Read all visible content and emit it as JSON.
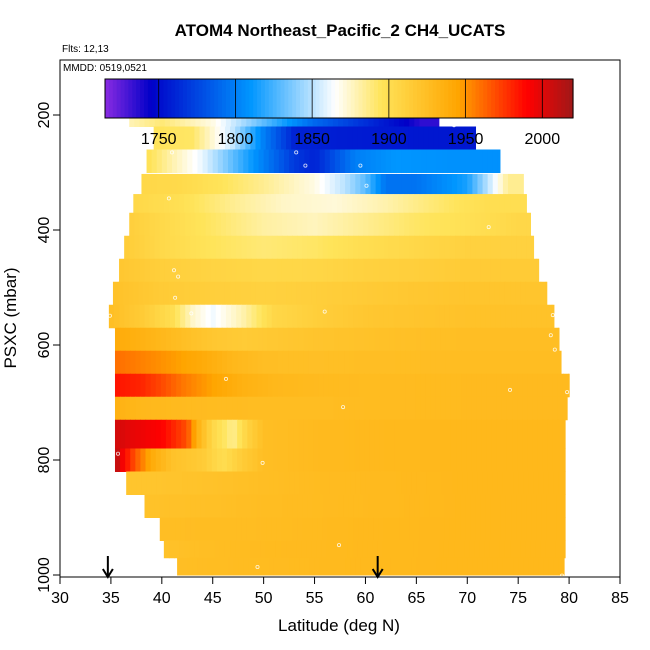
{
  "chart_data": {
    "type": "heatmap",
    "title": "ATOM4 Northeast_Pacific_2 CH4_UCATS",
    "flights_note": "Flts: 12,13",
    "dates_note": "MMDD: 0519,0521",
    "xlabel": "Latitude (deg N)",
    "ylabel": "PSXC (mbar)",
    "xlim": [
      30,
      85
    ],
    "ylim": [
      1000,
      0
    ],
    "x_ticks": [
      30,
      35,
      40,
      45,
      50,
      55,
      60,
      65,
      70,
      75,
      80,
      85
    ],
    "y_ticks": [
      200,
      400,
      600,
      800,
      1000
    ],
    "colorbar": {
      "min": 1715,
      "max": 2020,
      "ticks": [
        1750,
        1800,
        1850,
        1900,
        1950,
        2000
      ],
      "colors": [
        "#8a2be2",
        "#0000c8",
        "#0096ff",
        "#ffffff",
        "#ffe45a",
        "#ffa500",
        "#ff0000",
        "#a01818"
      ],
      "color_stops": [
        1715,
        1745,
        1810,
        1865,
        1895,
        1945,
        1990,
        2020
      ]
    },
    "arrows_lat": [
      34.7,
      61.2
    ],
    "rows": [
      {
        "p": 200,
        "dp": 40,
        "lat0": 36.8,
        "lat1": 67.2,
        "segs": [
          [
            36.8,
            1878
          ],
          [
            40,
            1890
          ],
          [
            45,
            1870
          ],
          [
            50,
            1830
          ],
          [
            55,
            1790
          ],
          [
            60,
            1765
          ],
          [
            64,
            1745
          ],
          [
            65.5,
            1735
          ]
        ]
      },
      {
        "p": 240,
        "dp": 40,
        "lat0": 39.2,
        "lat1": 70.8,
        "segs": [
          [
            39.2,
            1895
          ],
          [
            43,
            1893
          ],
          [
            47,
            1852
          ],
          [
            50,
            1800
          ],
          [
            53,
            1760
          ],
          [
            58,
            1757
          ],
          [
            65,
            1755
          ]
        ]
      },
      {
        "p": 280,
        "dp": 40,
        "lat0": 38.5,
        "lat1": 73.2,
        "segs": [
          [
            38.5,
            1898
          ],
          [
            41,
            1880
          ],
          [
            44,
            1860
          ],
          [
            47,
            1830
          ],
          [
            50,
            1800
          ],
          [
            53,
            1770
          ],
          [
            55,
            1760
          ],
          [
            59,
            1800
          ],
          [
            63,
            1810
          ],
          [
            68,
            1808
          ]
        ]
      },
      {
        "p": 320,
        "dp": 35,
        "lat0": 38,
        "lat1": 75.5,
        "segs": [
          [
            38,
            1905
          ],
          [
            42,
            1903
          ],
          [
            46,
            1895
          ],
          [
            50,
            1885
          ],
          [
            55,
            1870
          ],
          [
            58,
            1850
          ],
          [
            60,
            1830
          ],
          [
            62,
            1795
          ],
          [
            65,
            1795
          ],
          [
            70,
            1815
          ],
          [
            74,
            1885
          ]
        ]
      },
      {
        "p": 355,
        "dp": 35,
        "lat0": 37.2,
        "lat1": 75.8,
        "segs": [
          [
            37.2,
            1905
          ],
          [
            42,
            1898
          ],
          [
            47,
            1885
          ],
          [
            52,
            1875
          ],
          [
            57,
            1872
          ],
          [
            62,
            1880
          ],
          [
            68,
            1893
          ],
          [
            72,
            1900
          ]
        ]
      },
      {
        "p": 390,
        "dp": 40,
        "lat0": 36.8,
        "lat1": 76.2,
        "segs": [
          [
            36.8,
            1912
          ],
          [
            40,
            1904
          ],
          [
            45,
            1893
          ],
          [
            50,
            1882
          ],
          [
            55,
            1877
          ],
          [
            60,
            1885
          ],
          [
            65,
            1893
          ],
          [
            70,
            1898
          ],
          [
            75,
            1905
          ]
        ]
      },
      {
        "p": 430,
        "dp": 40,
        "lat0": 36.3,
        "lat1": 76.5,
        "segs": [
          [
            36.3,
            1914
          ],
          [
            40,
            1904
          ],
          [
            45,
            1895
          ],
          [
            50,
            1890
          ],
          [
            55,
            1893
          ],
          [
            60,
            1900
          ],
          [
            65,
            1905
          ],
          [
            70,
            1910
          ]
        ]
      },
      {
        "p": 470,
        "dp": 40,
        "lat0": 35.8,
        "lat1": 77,
        "segs": [
          [
            35.8,
            1918
          ],
          [
            40,
            1912
          ],
          [
            45,
            1908
          ],
          [
            50,
            1905
          ],
          [
            55,
            1906
          ],
          [
            60,
            1910
          ],
          [
            65,
            1912
          ],
          [
            70,
            1915
          ]
        ]
      },
      {
        "p": 510,
        "dp": 40,
        "lat0": 35.2,
        "lat1": 77.8,
        "segs": [
          [
            35.2,
            1922
          ],
          [
            40,
            1915
          ],
          [
            45,
            1912
          ],
          [
            50,
            1910
          ],
          [
            55,
            1912
          ],
          [
            60,
            1915
          ],
          [
            65,
            1918
          ],
          [
            70,
            1920
          ]
        ]
      },
      {
        "p": 550,
        "dp": 40,
        "lat0": 34.8,
        "lat1": 78.5,
        "segs": [
          [
            34.8,
            1925
          ],
          [
            38,
            1915
          ],
          [
            41,
            1900
          ],
          [
            43,
            1875
          ],
          [
            45,
            1862
          ],
          [
            48,
            1880
          ],
          [
            51,
            1905
          ],
          [
            55,
            1912
          ],
          [
            60,
            1918
          ],
          [
            65,
            1920
          ],
          [
            70,
            1922
          ]
        ]
      },
      {
        "p": 590,
        "dp": 40,
        "lat0": 35.4,
        "lat1": 79,
        "segs": [
          [
            35.4,
            1940
          ],
          [
            38,
            1935
          ],
          [
            42,
            1925
          ],
          [
            45,
            1918
          ],
          [
            48,
            1915
          ],
          [
            52,
            1918
          ],
          [
            55,
            1920
          ],
          [
            60,
            1922
          ],
          [
            65,
            1924
          ],
          [
            70,
            1925
          ]
        ]
      },
      {
        "p": 630,
        "dp": 40,
        "lat0": 35.4,
        "lat1": 79.2,
        "segs": [
          [
            35.4,
            1960
          ],
          [
            38,
            1955
          ],
          [
            41,
            1948
          ],
          [
            44,
            1940
          ],
          [
            47,
            1930
          ],
          [
            50,
            1925
          ],
          [
            55,
            1924
          ],
          [
            60,
            1925
          ],
          [
            70,
            1926
          ]
        ]
      },
      {
        "p": 670,
        "dp": 40,
        "lat0": 35.4,
        "lat1": 80,
        "segs": [
          [
            35.4,
            1985
          ],
          [
            38,
            1980
          ],
          [
            40,
            1970
          ],
          [
            42,
            1958
          ],
          [
            45,
            1945
          ],
          [
            48,
            1935
          ],
          [
            51,
            1930
          ],
          [
            55,
            1928
          ],
          [
            60,
            1927
          ],
          [
            70,
            1928
          ]
        ]
      },
      {
        "p": 710,
        "dp": 40,
        "lat0": 35.4,
        "lat1": 79.8,
        "segs": [
          [
            35.4,
            1935
          ],
          [
            38,
            1930
          ],
          [
            42,
            1928
          ],
          [
            45,
            1927
          ],
          [
            50,
            1926
          ],
          [
            55,
            1926
          ],
          [
            60,
            1927
          ],
          [
            70,
            1928
          ]
        ]
      },
      {
        "p": 755,
        "dp": 50,
        "lat0": 35.4,
        "lat1": 79.6,
        "segs": [
          [
            35.4,
            2005
          ],
          [
            37,
            1998
          ],
          [
            40,
            1990
          ],
          [
            42.5,
            1968
          ],
          [
            43.5,
            1935
          ],
          [
            45,
            1905
          ],
          [
            47,
            1885
          ],
          [
            48.5,
            1910
          ],
          [
            50,
            1925
          ],
          [
            55,
            1928
          ],
          [
            60,
            1929
          ],
          [
            70,
            1930
          ]
        ]
      },
      {
        "p": 800,
        "dp": 40,
        "lat0": 35.4,
        "lat1": 79.6,
        "segs": [
          [
            35.4,
            2015
          ],
          [
            36.2,
            1992
          ],
          [
            37.5,
            1965
          ],
          [
            39,
            1940
          ],
          [
            41,
            1922
          ],
          [
            44,
            1915
          ],
          [
            46,
            1900
          ],
          [
            48,
            1915
          ],
          [
            50,
            1925
          ],
          [
            55,
            1928
          ],
          [
            60,
            1929
          ],
          [
            70,
            1930
          ]
        ]
      },
      {
        "p": 840,
        "dp": 40,
        "lat0": 36.5,
        "lat1": 79.6,
        "segs": [
          [
            36.5,
            1920
          ],
          [
            40,
            1920
          ],
          [
            45,
            1922
          ],
          [
            50,
            1925
          ],
          [
            55,
            1927
          ],
          [
            60,
            1928
          ],
          [
            70,
            1930
          ]
        ]
      },
      {
        "p": 880,
        "dp": 40,
        "lat0": 38.3,
        "lat1": 79.6,
        "segs": [
          [
            38.3,
            1922
          ],
          [
            42,
            1923
          ],
          [
            46,
            1924
          ],
          [
            50,
            1926
          ],
          [
            55,
            1927
          ],
          [
            60,
            1928
          ],
          [
            70,
            1930
          ]
        ]
      },
      {
        "p": 920,
        "dp": 40,
        "lat0": 39.8,
        "lat1": 79.6,
        "segs": [
          [
            39.8,
            1925
          ],
          [
            44,
            1926
          ],
          [
            48,
            1926
          ],
          [
            52,
            1927
          ],
          [
            56,
            1928
          ],
          [
            60,
            1929
          ],
          [
            70,
            1930
          ]
        ]
      },
      {
        "p": 955,
        "dp": 30,
        "lat0": 40.2,
        "lat1": 79.6,
        "segs": [
          [
            40.2,
            1922
          ],
          [
            44,
            1925
          ],
          [
            48,
            1927
          ],
          [
            52,
            1928
          ],
          [
            56,
            1928
          ],
          [
            60,
            1929
          ],
          [
            70,
            1930
          ]
        ]
      },
      {
        "p": 985,
        "dp": 30,
        "lat0": 41.5,
        "lat1": 79.5,
        "segs": [
          [
            41.5,
            1925
          ],
          [
            45,
            1926
          ],
          [
            50,
            1927
          ],
          [
            55,
            1928
          ],
          [
            60,
            1929
          ],
          [
            70,
            1930
          ]
        ]
      }
    ],
    "points": [
      [
        64.2,
        192
      ],
      [
        64.8,
        192
      ],
      [
        66.3,
        192
      ],
      [
        66.8,
        192
      ],
      [
        68.7,
        218
      ],
      [
        41.0,
        265
      ],
      [
        53.2,
        265
      ],
      [
        54.1,
        288
      ],
      [
        59.5,
        288
      ],
      [
        60.1,
        323
      ],
      [
        40.7,
        345
      ],
      [
        72.1,
        395
      ],
      [
        41.2,
        470
      ],
      [
        41.6,
        481
      ],
      [
        41.3,
        518
      ],
      [
        42.9,
        545
      ],
      [
        56.0,
        542
      ],
      [
        34.9,
        549
      ],
      [
        78.4,
        548
      ],
      [
        78.2,
        583
      ],
      [
        78.6,
        608
      ],
      [
        46.3,
        659
      ],
      [
        74.2,
        678
      ],
      [
        57.8,
        708
      ],
      [
        79.8,
        682
      ],
      [
        35.7,
        789
      ],
      [
        49.9,
        805
      ],
      [
        57.4,
        948
      ],
      [
        49.4,
        986
      ],
      [
        79.3,
        1001
      ],
      [
        61.2,
        1001
      ]
    ]
  }
}
